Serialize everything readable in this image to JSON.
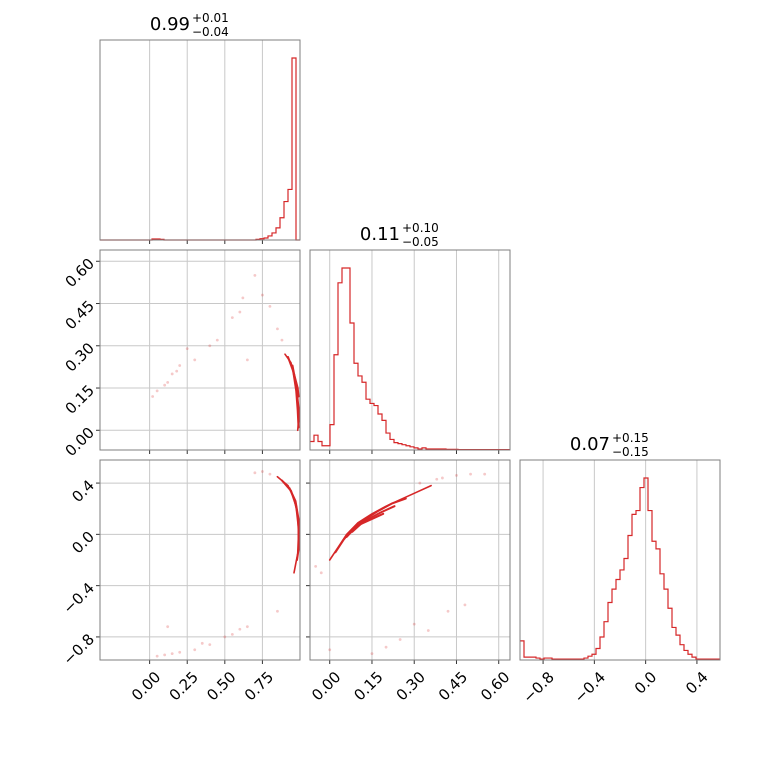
{
  "chart_data": {
    "type": "corner",
    "line_color": "#d62728",
    "grid": true,
    "parameters": [
      {
        "title": {
          "median": "0.99",
          "plus": "+0.01",
          "minus": "−0.04"
        },
        "range": [
          -0.33,
          1.0
        ],
        "ticks": [
          0.0,
          0.25,
          0.5,
          0.75
        ],
        "tick_labels": [
          "0.00",
          "0.25",
          "0.50",
          "0.75"
        ],
        "histogram": {
          "start": -0.33,
          "bin_width": 0.0266,
          "values": [
            0,
            0,
            0,
            0,
            0,
            0,
            0,
            0,
            0,
            0,
            0,
            0,
            0,
            0.005,
            0.005,
            0.003,
            0,
            0,
            0,
            0,
            0,
            0,
            0,
            0,
            0,
            0,
            0,
            0,
            0,
            0,
            0,
            0,
            0,
            0,
            0,
            0,
            0,
            0,
            0,
            0.003,
            0.006,
            0.01,
            0.02,
            0.035,
            0.06,
            0.11,
            0.19,
            0.25,
            0.9,
            0
          ]
        }
      },
      {
        "title": {
          "median": "0.11",
          "plus": "+0.10",
          "minus": "−0.05"
        },
        "range": [
          -0.07,
          0.64
        ],
        "ticks": [
          0.0,
          0.15,
          0.3,
          0.45,
          0.6
        ],
        "tick_labels": [
          "0.00",
          "0.15",
          "0.30",
          "0.45",
          "0.60"
        ],
        "histogram": {
          "start": -0.07,
          "bin_width": 0.0142,
          "values": [
            0.04,
            0.07,
            0.04,
            0.02,
            0.02,
            0.12,
            0.45,
            0.79,
            0.86,
            0.86,
            0.6,
            0.41,
            0.35,
            0.32,
            0.24,
            0.22,
            0.21,
            0.17,
            0.14,
            0.08,
            0.05,
            0.035,
            0.03,
            0.025,
            0.02,
            0.015,
            0.01,
            0.005,
            0.01,
            0.005,
            0.005,
            0.005,
            0.005,
            0.005,
            0.003,
            0.003,
            0.003,
            0.002,
            0.002,
            0.002,
            0.002,
            0.002,
            0.002,
            0.002,
            0.002,
            0.002,
            0.002,
            0.002,
            0.002,
            0.002
          ]
        }
      },
      {
        "title": {
          "median": "0.07",
          "plus": "+0.15",
          "minus": "−0.15"
        },
        "range": [
          -0.98,
          0.58
        ],
        "ticks": [
          -0.8,
          -0.4,
          0.0,
          0.4
        ],
        "tick_labels": [
          "−0.8",
          "−0.4",
          "0.0",
          "0.4"
        ],
        "histogram": {
          "start": -0.98,
          "bin_width": 0.0312,
          "values": [
            0.1,
            0.015,
            0.015,
            0.015,
            0.01,
            0.005,
            0.01,
            0.01,
            0.005,
            0.005,
            0.005,
            0.005,
            0.005,
            0.005,
            0.005,
            0.005,
            0.01,
            0.02,
            0.03,
            0.06,
            0.12,
            0.2,
            0.3,
            0.37,
            0.42,
            0.47,
            0.53,
            0.65,
            0.76,
            0.78,
            0.9,
            0.95,
            0.78,
            0.62,
            0.58,
            0.45,
            0.37,
            0.27,
            0.17,
            0.13,
            0.08,
            0.05,
            0.03,
            0.015,
            0.005,
            0.005,
            0.005,
            0.005,
            0.005,
            0.005
          ]
        }
      }
    ],
    "scatter_2d": [
      {
        "row": 1,
        "col": 0,
        "contours": [
          [
            [
              0.9,
              0.27
            ],
            [
              0.94,
              0.24
            ],
            [
              0.97,
              0.17
            ],
            [
              0.985,
              0.09
            ],
            [
              0.99,
              0.03
            ],
            [
              0.985,
              0.0
            ]
          ],
          [
            [
              0.92,
              0.26
            ],
            [
              0.955,
              0.21
            ],
            [
              0.975,
              0.14
            ],
            [
              0.985,
              0.07
            ],
            [
              0.99,
              0.01
            ]
          ],
          [
            [
              0.95,
              0.23
            ],
            [
              0.975,
              0.16
            ],
            [
              0.99,
              0.08
            ],
            [
              0.99,
              0.03
            ]
          ],
          [
            [
              0.96,
              0.2
            ],
            [
              0.985,
              0.15
            ],
            [
              0.99,
              0.12
            ]
          ]
        ],
        "points": [
          [
            0.12,
            0.17
          ],
          [
            0.1,
            0.16
          ],
          [
            0.15,
            0.2
          ],
          [
            0.18,
            0.21
          ],
          [
            0.2,
            0.23
          ],
          [
            0.05,
            0.14
          ],
          [
            0.3,
            0.25
          ],
          [
            0.45,
            0.32
          ],
          [
            0.55,
            0.4
          ],
          [
            0.62,
            0.47
          ],
          [
            0.7,
            0.55
          ],
          [
            0.8,
            0.44
          ],
          [
            0.85,
            0.36
          ],
          [
            0.88,
            0.32
          ],
          [
            0.4,
            0.3
          ],
          [
            0.25,
            0.29
          ],
          [
            0.65,
            0.25
          ],
          [
            0.02,
            0.12
          ],
          [
            0.6,
            0.42
          ],
          [
            0.75,
            0.48
          ]
        ]
      },
      {
        "row": 2,
        "col": 0,
        "contours": [
          [
            [
              0.85,
              0.45
            ],
            [
              0.92,
              0.38
            ],
            [
              0.96,
              0.28
            ],
            [
              0.985,
              0.15
            ],
            [
              0.99,
              0.0
            ],
            [
              0.985,
              -0.15
            ],
            [
              0.96,
              -0.3
            ]
          ],
          [
            [
              0.88,
              0.42
            ],
            [
              0.94,
              0.34
            ],
            [
              0.975,
              0.22
            ],
            [
              0.99,
              0.06
            ],
            [
              0.99,
              -0.12
            ],
            [
              0.98,
              -0.2
            ]
          ],
          [
            [
              0.93,
              0.36
            ],
            [
              0.97,
              0.26
            ],
            [
              0.99,
              0.12
            ],
            [
              0.99,
              -0.05
            ]
          ]
        ],
        "points": [
          [
            0.05,
            -0.95
          ],
          [
            0.1,
            -0.94
          ],
          [
            0.15,
            -0.93
          ],
          [
            0.2,
            -0.92
          ],
          [
            0.3,
            -0.9
          ],
          [
            0.4,
            -0.86
          ],
          [
            0.5,
            -0.8
          ],
          [
            0.55,
            -0.78
          ],
          [
            0.6,
            -0.74
          ],
          [
            0.65,
            -0.72
          ],
          [
            0.7,
            0.48
          ],
          [
            0.75,
            0.49
          ],
          [
            0.8,
            0.47
          ],
          [
            0.12,
            -0.72
          ],
          [
            0.35,
            -0.85
          ],
          [
            0.85,
            -0.6
          ]
        ]
      },
      {
        "row": 2,
        "col": 1,
        "contours": [
          [
            [
              0.0,
              -0.2
            ],
            [
              0.03,
              -0.1
            ],
            [
              0.06,
              0.0
            ],
            [
              0.1,
              0.09
            ],
            [
              0.15,
              0.16
            ],
            [
              0.2,
              0.22
            ],
            [
              0.25,
              0.27
            ],
            [
              0.3,
              0.32
            ],
            [
              0.36,
              0.38
            ]
          ],
          [
            [
              0.02,
              -0.14
            ],
            [
              0.05,
              -0.04
            ],
            [
              0.08,
              0.04
            ],
            [
              0.12,
              0.11
            ],
            [
              0.17,
              0.18
            ],
            [
              0.22,
              0.24
            ],
            [
              0.27,
              0.28
            ]
          ],
          [
            [
              0.06,
              -0.02
            ],
            [
              0.09,
              0.05
            ],
            [
              0.13,
              0.11
            ],
            [
              0.18,
              0.17
            ],
            [
              0.23,
              0.22
            ]
          ],
          [
            [
              0.08,
              0.02
            ],
            [
              0.11,
              0.08
            ],
            [
              0.15,
              0.12
            ],
            [
              0.19,
              0.16
            ]
          ]
        ],
        "points": [
          [
            -0.05,
            -0.25
          ],
          [
            -0.03,
            -0.3
          ],
          [
            0.32,
            0.4
          ],
          [
            0.4,
            0.44
          ],
          [
            0.45,
            0.46
          ],
          [
            0.5,
            0.47
          ],
          [
            0.55,
            0.47
          ],
          [
            0.3,
            -0.7
          ],
          [
            0.35,
            -0.75
          ],
          [
            0.25,
            -0.82
          ],
          [
            0.2,
            -0.88
          ],
          [
            0.15,
            -0.93
          ],
          [
            0.42,
            -0.6
          ],
          [
            0.48,
            -0.55
          ],
          [
            0.0,
            -0.9
          ],
          [
            0.38,
            0.43
          ]
        ]
      }
    ]
  }
}
